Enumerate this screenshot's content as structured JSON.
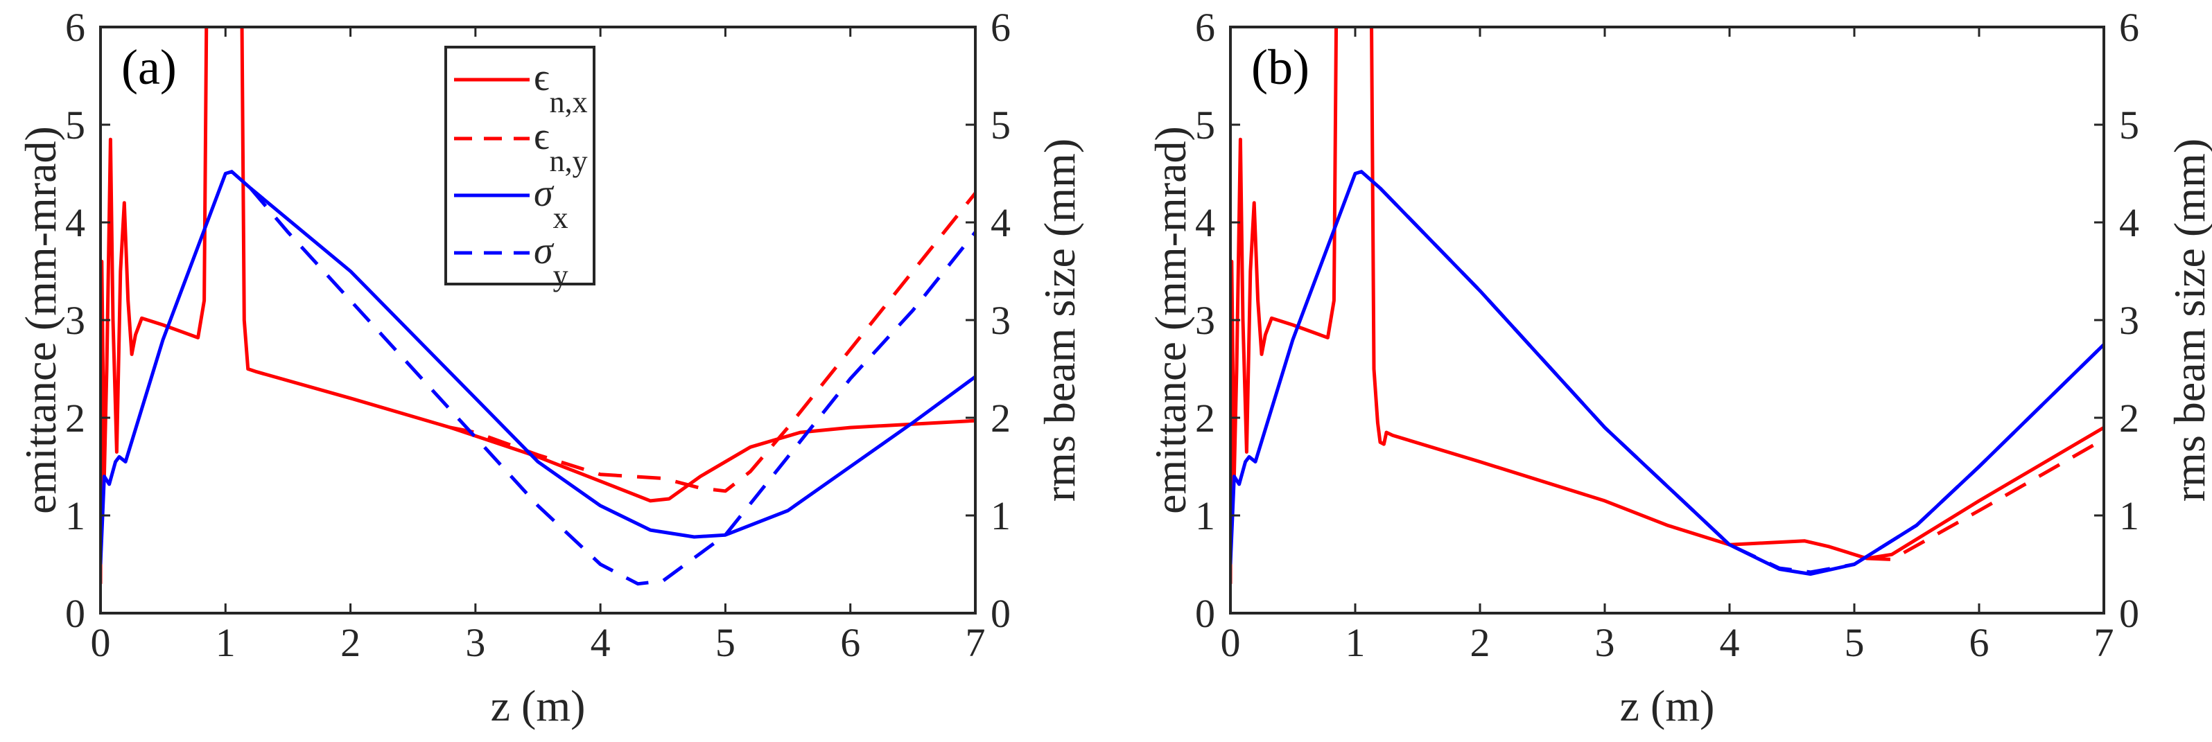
{
  "chart_data": [
    {
      "type": "line",
      "panel_label": "(a)",
      "xlabel": "z (m)",
      "ylabel_left": "emittance (mm-mrad)",
      "ylabel_right": "rms beam size (mm)",
      "xlim": [
        0,
        7
      ],
      "ylim_left": [
        0,
        6
      ],
      "ylim_right": [
        0,
        6
      ],
      "xticks": [
        "0",
        "1",
        "2",
        "3",
        "4",
        "5",
        "6",
        "7"
      ],
      "yticks": [
        "0",
        "1",
        "2",
        "3",
        "4",
        "5",
        "6"
      ],
      "grid": false,
      "legend": {
        "placement": "top-center",
        "entries": [
          {
            "symbol": "ϵ",
            "sub": "n,x",
            "color": "#ff0000",
            "dash": false
          },
          {
            "symbol": "ϵ",
            "sub": "n,y",
            "color": "#ff0000",
            "dash": true
          },
          {
            "symbol": "σ",
            "sub": "x",
            "color": "#0000ff",
            "dash": false
          },
          {
            "symbol": "σ",
            "sub": "y",
            "color": "#0000ff",
            "dash": true
          }
        ]
      },
      "series": [
        {
          "name": "eps_n,x",
          "axis": "left",
          "color": "#ff0000",
          "dash": false,
          "x": [
            0,
            0.01,
            0.03,
            0.05,
            0.08,
            0.1,
            0.13,
            0.16,
            0.19,
            0.22,
            0.25,
            0.28,
            0.33,
            0.5,
            0.78,
            0.83,
            0.86,
            1.12,
            1.15,
            1.18,
            1.25,
            2,
            2.8,
            3.5,
            4.0,
            4.4,
            4.55,
            4.8,
            5.2,
            5.6,
            6,
            7
          ],
          "y": [
            0.3,
            3.6,
            1.4,
            2.5,
            4.85,
            3,
            1.65,
            3.5,
            4.2,
            3.2,
            2.65,
            2.85,
            3.02,
            2.95,
            2.82,
            3.2,
            8,
            8,
            3,
            2.5,
            2.47,
            2.2,
            1.9,
            1.6,
            1.35,
            1.15,
            1.17,
            1.4,
            1.7,
            1.85,
            1.9,
            1.97
          ]
        },
        {
          "name": "eps_n,y",
          "axis": "left",
          "color": "#ff0000",
          "dash": true,
          "x": [
            2.8,
            3,
            3.5,
            4,
            4.5,
            4.8,
            5.0,
            5.2,
            5.5,
            6,
            6.5,
            7
          ],
          "y": [
            1.9,
            1.85,
            1.62,
            1.42,
            1.38,
            1.28,
            1.25,
            1.45,
            1.9,
            2.7,
            3.5,
            4.3
          ]
        },
        {
          "name": "sigma_x",
          "axis": "right",
          "color": "#0000ff",
          "dash": false,
          "x": [
            0,
            0.03,
            0.07,
            0.12,
            0.15,
            0.2,
            0.5,
            1.0,
            1.05,
            1.2,
            2,
            3,
            3.5,
            4,
            4.4,
            4.75,
            5,
            5.5,
            6,
            6.5,
            7
          ],
          "y": [
            0.5,
            1.4,
            1.32,
            1.55,
            1.6,
            1.55,
            2.8,
            4.5,
            4.52,
            4.35,
            3.5,
            2.2,
            1.55,
            1.1,
            0.85,
            0.78,
            0.8,
            1.05,
            1.5,
            1.95,
            2.42
          ]
        },
        {
          "name": "sigma_y",
          "axis": "right",
          "color": "#0000ff",
          "dash": true,
          "x": [
            1.2,
            1.5,
            2,
            3,
            3.5,
            4,
            4.3,
            4.5,
            5,
            5.5,
            6,
            6.5,
            7
          ],
          "y": [
            4.35,
            3.9,
            3.2,
            1.8,
            1.1,
            0.5,
            0.3,
            0.33,
            0.8,
            1.6,
            2.4,
            3.1,
            3.9
          ]
        }
      ]
    },
    {
      "type": "line",
      "panel_label": "(b)",
      "xlabel": "z (m)",
      "ylabel_left": "emittance (mm-mrad)",
      "ylabel_right": "rms beam size (mm)",
      "xlim": [
        0,
        7
      ],
      "ylim_left": [
        0,
        6
      ],
      "ylim_right": [
        0,
        6
      ],
      "xticks": [
        "0",
        "1",
        "2",
        "3",
        "4",
        "5",
        "6",
        "7"
      ],
      "yticks": [
        "0",
        "1",
        "2",
        "3",
        "4",
        "5",
        "6"
      ],
      "grid": false,
      "series": [
        {
          "name": "eps_n,x",
          "axis": "left",
          "color": "#ff0000",
          "dash": false,
          "x": [
            0,
            0.01,
            0.03,
            0.05,
            0.08,
            0.1,
            0.13,
            0.16,
            0.19,
            0.22,
            0.25,
            0.28,
            0.33,
            0.5,
            0.78,
            0.83,
            0.86,
            1.12,
            1.15,
            1.18,
            1.2,
            1.23,
            1.25,
            1.3,
            2,
            3,
            3.5,
            4,
            4.3,
            4.6,
            4.8,
            5.1,
            5.3,
            6,
            7
          ],
          "y": [
            0.3,
            3.6,
            1.4,
            2.5,
            4.85,
            3,
            1.65,
            3.5,
            4.2,
            3.2,
            2.65,
            2.85,
            3.02,
            2.95,
            2.82,
            3.2,
            8,
            8,
            2.5,
            1.95,
            1.75,
            1.73,
            1.85,
            1.82,
            1.55,
            1.15,
            0.9,
            0.7,
            0.72,
            0.74,
            0.68,
            0.56,
            0.6,
            1.15,
            1.9
          ]
        },
        {
          "name": "eps_n,y",
          "axis": "left",
          "color": "#ff0000",
          "dash": true,
          "x": [
            5.1,
            5.3,
            6,
            7
          ],
          "y": [
            0.56,
            0.55,
            1.05,
            1.78
          ]
        },
        {
          "name": "sigma_x",
          "axis": "right",
          "color": "#0000ff",
          "dash": false,
          "x": [
            0,
            0.03,
            0.07,
            0.12,
            0.15,
            0.2,
            0.5,
            1.0,
            1.05,
            1.2,
            2,
            3,
            4,
            4.4,
            4.65,
            5,
            5.5,
            6,
            7
          ],
          "y": [
            0.5,
            1.4,
            1.32,
            1.55,
            1.6,
            1.55,
            2.8,
            4.5,
            4.52,
            4.35,
            3.3,
            1.9,
            0.7,
            0.45,
            0.4,
            0.5,
            0.9,
            1.5,
            2.75
          ]
        },
        {
          "name": "sigma_y",
          "axis": "right",
          "color": "#0000ff",
          "dash": true,
          "x": [
            1.2,
            2,
            3,
            4,
            4.4,
            4.65,
            5,
            5.5,
            6,
            7
          ],
          "y": [
            4.35,
            3.3,
            1.9,
            0.7,
            0.46,
            0.42,
            0.5,
            0.9,
            1.5,
            2.75
          ]
        }
      ]
    }
  ]
}
